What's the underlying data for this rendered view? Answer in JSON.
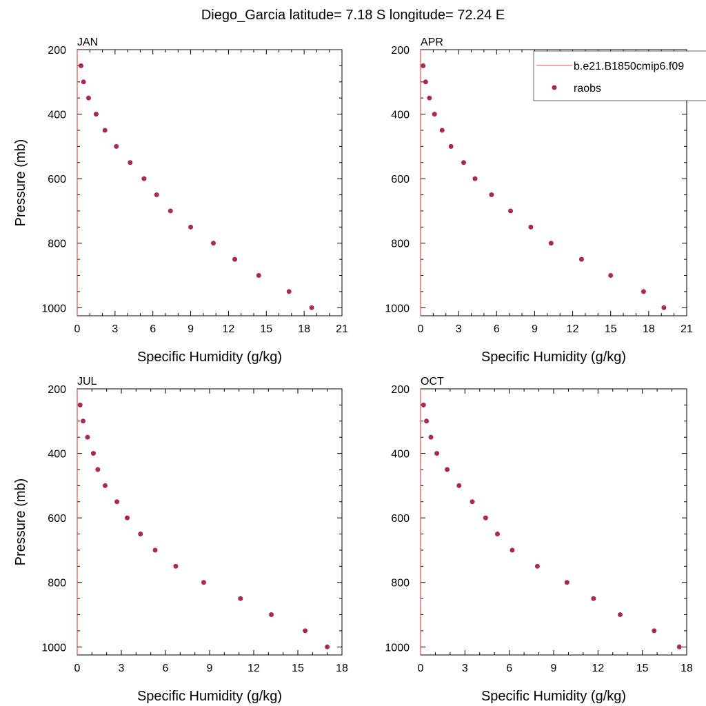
{
  "title": "Diego_Garcia  latitude= 7.18 S longitude= 72.24 E",
  "legend": {
    "model_label": "b.e21.B1850cmip6.f09",
    "obs_label": "raobs",
    "model_color": "#e05050",
    "obs_color": "#a8285a"
  },
  "chart_data": [
    {
      "type": "scatter",
      "panel": "JAN",
      "xlabel": "Specific Humidity (g/kg)",
      "ylabel": "Pressure (mb)",
      "xlim": [
        0,
        21
      ],
      "ylim": [
        1025,
        200
      ],
      "xticks": [
        0,
        3,
        6,
        9,
        12,
        15,
        18,
        21
      ],
      "yticks": [
        200,
        400,
        600,
        800,
        1000
      ],
      "series": [
        {
          "name": "raobs",
          "x": [
            0.3,
            0.5,
            0.9,
            1.5,
            2.2,
            3.1,
            4.2,
            5.3,
            6.3,
            7.4,
            9.0,
            10.8,
            12.5,
            14.4,
            16.8,
            18.6
          ],
          "y": [
            250,
            300,
            350,
            400,
            450,
            500,
            550,
            600,
            650,
            700,
            750,
            800,
            850,
            900,
            950,
            1000
          ]
        },
        {
          "name": "b.e21.B1850cmip6.f09",
          "x": [
            0,
            0
          ],
          "y": [
            200,
            1025
          ]
        }
      ]
    },
    {
      "type": "scatter",
      "panel": "APR",
      "xlabel": "Specific Humidity (g/kg)",
      "ylabel": "",
      "xlim": [
        0,
        21
      ],
      "ylim": [
        1025,
        200
      ],
      "xticks": [
        0,
        3,
        6,
        9,
        12,
        15,
        18,
        21
      ],
      "yticks": [
        200,
        400,
        600,
        800,
        1000
      ],
      "series": [
        {
          "name": "raobs",
          "x": [
            0.2,
            0.4,
            0.7,
            1.1,
            1.7,
            2.4,
            3.4,
            4.3,
            5.6,
            7.1,
            8.7,
            10.3,
            12.7,
            15.0,
            17.6,
            19.2
          ],
          "y": [
            250,
            300,
            350,
            400,
            450,
            500,
            550,
            600,
            650,
            700,
            750,
            800,
            850,
            900,
            950,
            1000
          ]
        },
        {
          "name": "b.e21.B1850cmip6.f09",
          "x": [
            0,
            0
          ],
          "y": [
            200,
            1025
          ]
        }
      ]
    },
    {
      "type": "scatter",
      "panel": "JUL",
      "xlabel": "Specific Humidity (g/kg)",
      "ylabel": "Pressure (mb)",
      "xlim": [
        0,
        18
      ],
      "ylim": [
        1025,
        200
      ],
      "xticks": [
        0,
        3,
        6,
        9,
        12,
        15,
        18
      ],
      "yticks": [
        200,
        400,
        600,
        800,
        1000
      ],
      "series": [
        {
          "name": "raobs",
          "x": [
            0.2,
            0.4,
            0.7,
            1.1,
            1.4,
            1.9,
            2.7,
            3.4,
            4.3,
            5.3,
            6.7,
            8.6,
            11.1,
            13.2,
            15.5,
            17.0
          ],
          "y": [
            250,
            300,
            350,
            400,
            450,
            500,
            550,
            600,
            650,
            700,
            750,
            800,
            850,
            900,
            950,
            1000
          ]
        },
        {
          "name": "b.e21.B1850cmip6.f09",
          "x": [
            0,
            0
          ],
          "y": [
            200,
            1025
          ]
        }
      ]
    },
    {
      "type": "scatter",
      "panel": "OCT",
      "xlabel": "Specific Humidity (g/kg)",
      "ylabel": "",
      "xlim": [
        0,
        18
      ],
      "ylim": [
        1025,
        200
      ],
      "xticks": [
        0,
        3,
        6,
        9,
        12,
        15,
        18
      ],
      "yticks": [
        200,
        400,
        600,
        800,
        1000
      ],
      "series": [
        {
          "name": "raobs",
          "x": [
            0.2,
            0.4,
            0.7,
            1.1,
            1.8,
            2.6,
            3.5,
            4.4,
            5.2,
            6.2,
            7.9,
            9.9,
            11.7,
            13.5,
            15.8,
            17.5
          ],
          "y": [
            250,
            300,
            350,
            400,
            450,
            500,
            550,
            600,
            650,
            700,
            750,
            800,
            850,
            900,
            950,
            1000
          ]
        },
        {
          "name": "b.e21.B1850cmip6.f09",
          "x": [
            0,
            0
          ],
          "y": [
            200,
            1025
          ]
        }
      ]
    }
  ]
}
